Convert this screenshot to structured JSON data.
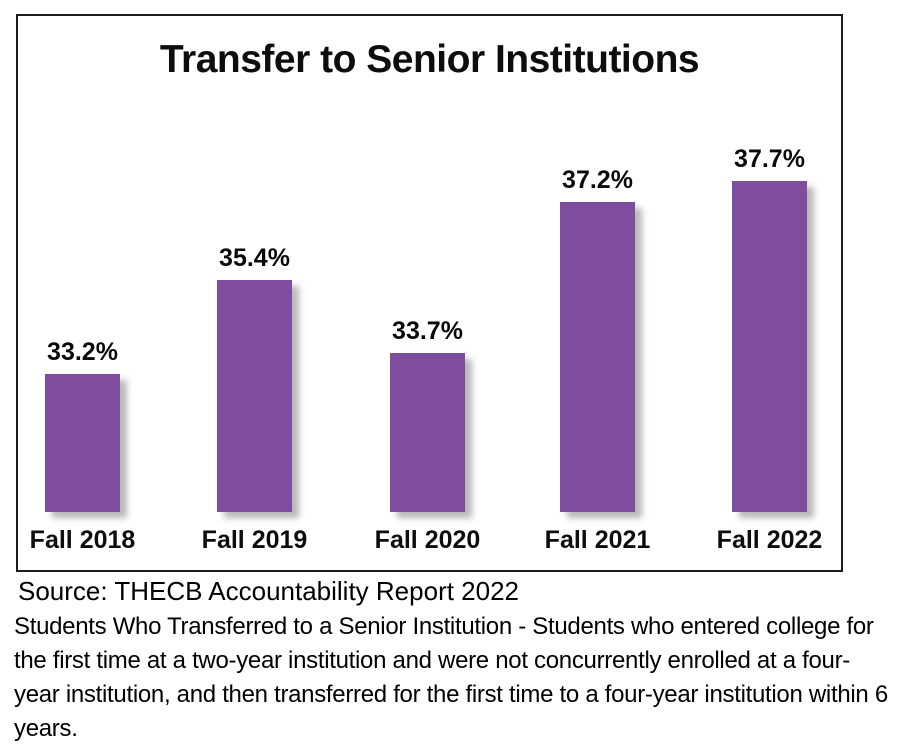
{
  "chart_data": {
    "type": "bar",
    "title": "Transfer to Senior Institutions",
    "categories": [
      "Fall 2018",
      "Fall 2019",
      "Fall 2020",
      "Fall 2021",
      "Fall 2022"
    ],
    "values": [
      33.2,
      35.4,
      33.7,
      37.2,
      37.7
    ],
    "data_labels": [
      "33.2%",
      "35.4%",
      "33.7%",
      "37.2%",
      "37.7%"
    ],
    "xlabel": "",
    "ylabel": "",
    "ylim": [
      30,
      38
    ],
    "grid": false,
    "legend": false,
    "bar_color": "#7E4D9E"
  },
  "footer": {
    "source": "Source: THECB Accountability Report 2022",
    "description": "Students Who Transferred to a Senior Institution - Students who entered college for the first time at a two-year institution and were not concurrently enrolled at a four-year institution, and then transferred for the first time to a four-year institution within 6 years."
  }
}
